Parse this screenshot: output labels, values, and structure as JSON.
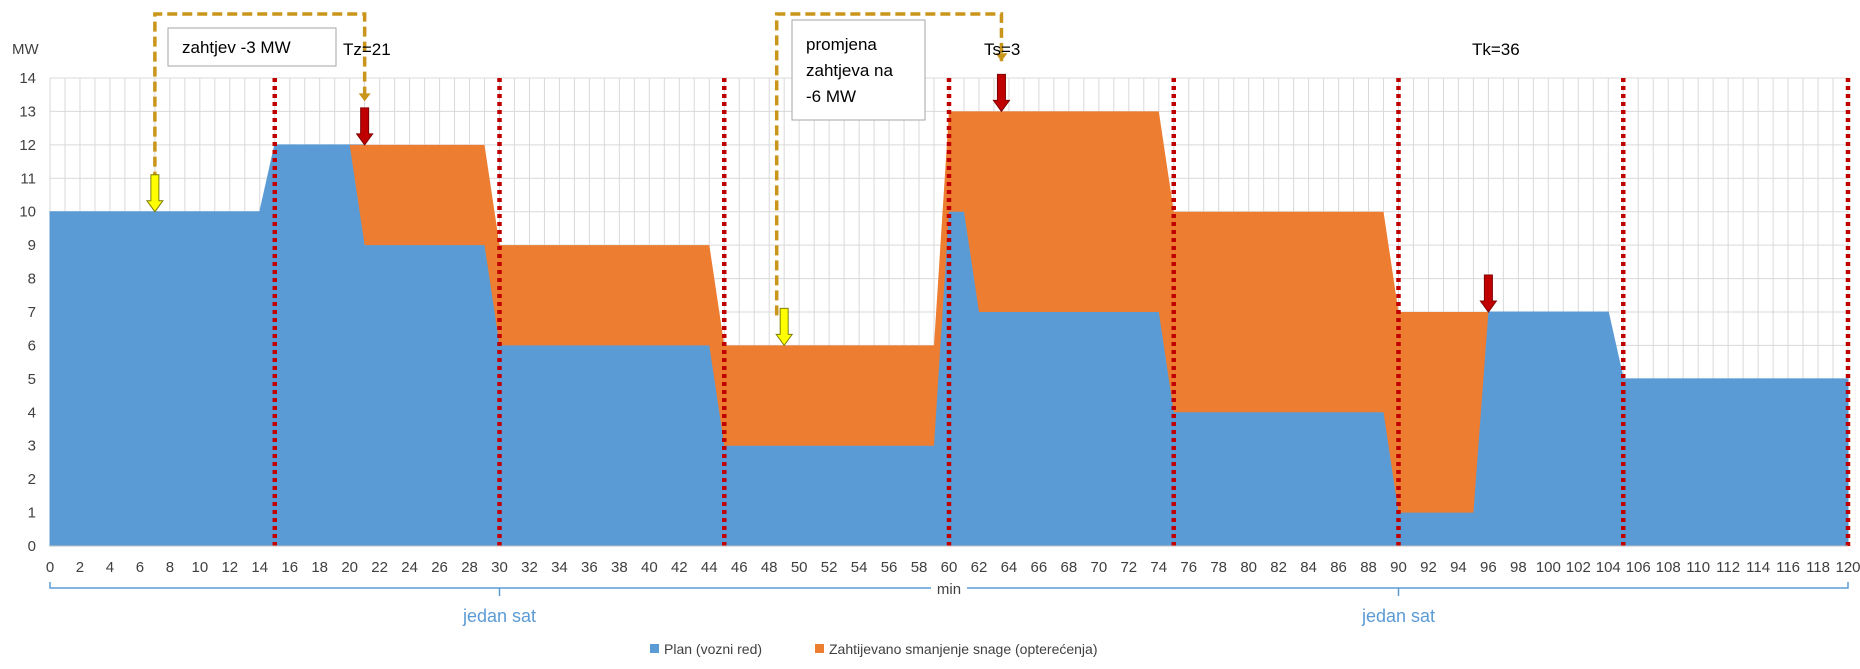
{
  "chart_data": {
    "type": "area",
    "ylabel": "MW",
    "xlabel": "min",
    "xlim": [
      0,
      120
    ],
    "ylim": [
      0,
      14
    ],
    "x_ticks": [
      0,
      2,
      4,
      6,
      8,
      10,
      12,
      14,
      16,
      18,
      20,
      22,
      24,
      26,
      28,
      30,
      32,
      34,
      36,
      38,
      40,
      42,
      44,
      46,
      48,
      50,
      52,
      54,
      56,
      58,
      60,
      62,
      64,
      66,
      68,
      70,
      72,
      74,
      76,
      78,
      80,
      82,
      84,
      86,
      88,
      90,
      92,
      94,
      96,
      98,
      100,
      102,
      104,
      106,
      108,
      110,
      112,
      114,
      116,
      118,
      120
    ],
    "y_ticks": [
      0,
      1,
      2,
      3,
      4,
      5,
      6,
      7,
      8,
      9,
      10,
      11,
      12,
      13,
      14
    ],
    "grid": true,
    "legend_position": "bottom",
    "series": [
      {
        "name": "Plan (vozni red)",
        "color": "#5b9bd5",
        "points": [
          [
            0,
            10
          ],
          [
            14,
            10
          ],
          [
            15,
            12
          ],
          [
            20,
            12
          ],
          [
            21,
            12
          ],
          [
            29,
            9
          ],
          [
            30,
            6
          ],
          [
            44,
            6
          ],
          [
            45,
            3
          ],
          [
            59,
            3
          ],
          [
            60,
            10
          ],
          [
            61,
            10
          ],
          [
            62,
            7
          ],
          [
            74,
            7
          ],
          [
            75,
            4
          ],
          [
            89,
            4
          ],
          [
            90,
            1
          ],
          [
            95,
            1
          ],
          [
            96,
            7
          ],
          [
            104,
            7
          ],
          [
            105,
            5
          ],
          [
            120,
            5
          ],
          [
            120,
            0
          ],
          [
            0,
            0
          ]
        ]
      },
      {
        "name": "Zahtijevano smanjenje snage (opterećenja)",
        "color": "#ed7d31",
        "points": [
          [
            20,
            12
          ],
          [
            29,
            12
          ],
          [
            30,
            9
          ],
          [
            44,
            9
          ],
          [
            45,
            6
          ],
          [
            59,
            6
          ],
          [
            60,
            13
          ],
          [
            74,
            13
          ],
          [
            75,
            10
          ],
          [
            89,
            10
          ],
          [
            90,
            7
          ],
          [
            96,
            7
          ],
          [
            95,
            1
          ],
          [
            90,
            1
          ],
          [
            89,
            4
          ],
          [
            75,
            4
          ],
          [
            74,
            7
          ],
          [
            62,
            7
          ],
          [
            61,
            10
          ],
          [
            60,
            10
          ],
          [
            59,
            3
          ],
          [
            45,
            3
          ],
          [
            44,
            6
          ],
          [
            30,
            6
          ],
          [
            29,
            9
          ],
          [
            21,
            9
          ]
        ]
      }
    ],
    "hour_boundaries": [
      15,
      30,
      45,
      60,
      75,
      90,
      105,
      120
    ],
    "annotations": {
      "tz": "Tz=21",
      "ts": "Ts=3",
      "tk": "Tk=36",
      "request_box": "zahtjev -3 MW",
      "change_box_lines": [
        "promjena",
        "zahtjeva na",
        "-6 MW"
      ],
      "hour_label_left": "jedan sat",
      "hour_label_right": "jedan sat"
    },
    "yellow_arrows_x": [
      7,
      49
    ],
    "red_arrows": [
      [
        21,
        12
      ],
      [
        63.5,
        13
      ],
      [
        96,
        7
      ]
    ]
  }
}
